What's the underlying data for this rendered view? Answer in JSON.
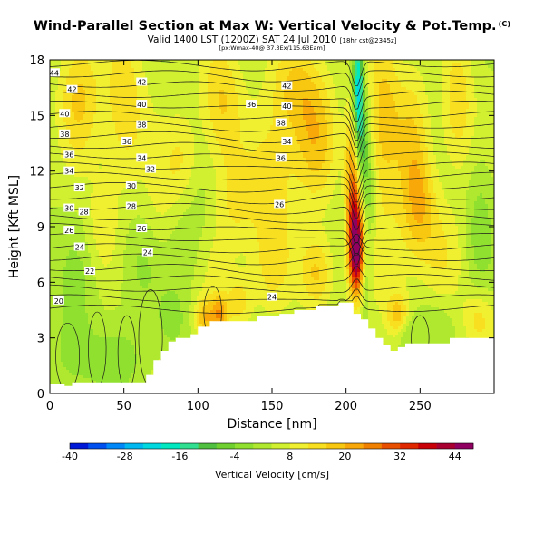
{
  "chart_data": {
    "type": "heatmap",
    "title": "Wind-Parallel Section at Max W: Vertical Velocity & Pot.Temp.",
    "title_mark": "(C)",
    "subtitle_main": "Valid 1400 LST (1200Z) SAT 24 Jul 2010",
    "subtitle_small": "[18hr cst@2345z]",
    "subtitle_line2": "[px:Wmax-40@ 37.3Ex/115.63Eam]",
    "xlabel": "Distance [nm]",
    "ylabel": "Height [Kft MSL]",
    "xlim": [
      0,
      300
    ],
    "ylim": [
      0,
      18
    ],
    "x_ticks": [
      0,
      50,
      100,
      150,
      200,
      250
    ],
    "y_ticks": [
      0,
      3,
      6,
      9,
      12,
      15,
      18
    ],
    "colorbar": {
      "title": "Vertical Velocity [cm/s]",
      "ticks": [
        -40,
        -28,
        -16,
        -4,
        8,
        20,
        32,
        44
      ],
      "range": [
        -40,
        48
      ],
      "step": 4,
      "colors": [
        "#0018d8",
        "#0050f0",
        "#0088f8",
        "#00b8f0",
        "#00d8e0",
        "#00e8c0",
        "#30e090",
        "#50c040",
        "#70d030",
        "#90e030",
        "#b0e830",
        "#d0f030",
        "#f0f030",
        "#f8e020",
        "#f8c810",
        "#f8a808",
        "#f08000",
        "#e85000",
        "#e02800",
        "#c80008",
        "#a80030",
        "#900060"
      ]
    },
    "terrain": [
      [
        0,
        0.5
      ],
      [
        10,
        0.5
      ],
      [
        10,
        0.4
      ],
      [
        15,
        0.4
      ],
      [
        15,
        0.6
      ],
      [
        25,
        0.6
      ],
      [
        30,
        0.6
      ],
      [
        50,
        0.6
      ],
      [
        60,
        0.6
      ],
      [
        65,
        0.6
      ],
      [
        65,
        1.0
      ],
      [
        70,
        1.0
      ],
      [
        70,
        1.8
      ],
      [
        75,
        1.8
      ],
      [
        75,
        2.3
      ],
      [
        80,
        2.3
      ],
      [
        80,
        2.8
      ],
      [
        85,
        2.8
      ],
      [
        85,
        3.0
      ],
      [
        95,
        3.0
      ],
      [
        95,
        3.2
      ],
      [
        100,
        3.2
      ],
      [
        100,
        3.6
      ],
      [
        108,
        3.6
      ],
      [
        108,
        3.9
      ],
      [
        140,
        3.9
      ],
      [
        140,
        4.2
      ],
      [
        155,
        4.2
      ],
      [
        155,
        4.3
      ],
      [
        165,
        4.3
      ],
      [
        165,
        4.5
      ],
      [
        180,
        4.5
      ],
      [
        180,
        4.7
      ],
      [
        195,
        4.7
      ],
      [
        195,
        4.9
      ],
      [
        205,
        4.9
      ],
      [
        205,
        4.3
      ],
      [
        210,
        4.3
      ],
      [
        210,
        4.0
      ],
      [
        215,
        4.0
      ],
      [
        215,
        3.5
      ],
      [
        220,
        3.5
      ],
      [
        220,
        3.0
      ],
      [
        225,
        3.0
      ],
      [
        225,
        2.6
      ],
      [
        230,
        2.6
      ],
      [
        230,
        2.3
      ],
      [
        235,
        2.3
      ],
      [
        235,
        2.5
      ],
      [
        240,
        2.5
      ],
      [
        240,
        2.7
      ],
      [
        250,
        2.7
      ],
      [
        260,
        2.7
      ],
      [
        270,
        2.7
      ],
      [
        270,
        3.0
      ],
      [
        285,
        3.0
      ],
      [
        300,
        3.0
      ]
    ],
    "field_features": [
      {
        "x": 207,
        "y": 7.5,
        "sx": 3.5,
        "sy": 1.6,
        "w": 34
      },
      {
        "x": 206,
        "y": 9.5,
        "sx": 3.0,
        "sy": 2.0,
        "w": 20
      },
      {
        "x": 203,
        "y": 12.2,
        "sx": 3.0,
        "sy": 2.5,
        "w": 14
      },
      {
        "x": 208,
        "y": 16.5,
        "sx": 2.5,
        "sy": 2.2,
        "w": -26
      },
      {
        "x": 212,
        "y": 13.5,
        "sx": 2.5,
        "sy": 2.0,
        "w": -12
      },
      {
        "x": 216,
        "y": 10.5,
        "sx": 3.0,
        "sy": 2.0,
        "w": -8
      },
      {
        "x": 213,
        "y": 6.0,
        "sx": 2.5,
        "sy": 1.5,
        "w": -8
      },
      {
        "x": 20,
        "y": 16.0,
        "sx": 10,
        "sy": 2.5,
        "w": 12
      },
      {
        "x": 50,
        "y": 15.5,
        "sx": 10,
        "sy": 3.0,
        "w": 12
      },
      {
        "x": 115,
        "y": 16.0,
        "sx": 10,
        "sy": 2.5,
        "w": 12
      },
      {
        "x": 165,
        "y": 16.5,
        "sx": 12,
        "sy": 2.0,
        "w": 12
      },
      {
        "x": 225,
        "y": 15.0,
        "sx": 8,
        "sy": 3.5,
        "w": 14
      },
      {
        "x": 245,
        "y": 13.5,
        "sx": 8,
        "sy": 3.0,
        "w": 10
      },
      {
        "x": 275,
        "y": 15.5,
        "sx": 8,
        "sy": 2.5,
        "w": 12
      },
      {
        "x": 150,
        "y": 12.0,
        "sx": 12,
        "sy": 2.5,
        "w": 10
      },
      {
        "x": 180,
        "y": 13.5,
        "sx": 10,
        "sy": 2.5,
        "w": 12
      },
      {
        "x": 125,
        "y": 10.0,
        "sx": 10,
        "sy": 2.0,
        "w": 8
      },
      {
        "x": 75,
        "y": 10.5,
        "sx": 8,
        "sy": 2.5,
        "w": 6
      },
      {
        "x": 35,
        "y": 9.0,
        "sx": 8,
        "sy": 2.0,
        "w": 6
      },
      {
        "x": 110,
        "y": 6.5,
        "sx": 10,
        "sy": 2.0,
        "w": 6
      },
      {
        "x": 150,
        "y": 7.0,
        "sx": 10,
        "sy": 2.0,
        "w": 8
      },
      {
        "x": 180,
        "y": 6.5,
        "sx": 8,
        "sy": 1.5,
        "w": 14
      },
      {
        "x": 128,
        "y": 5.0,
        "sx": 6,
        "sy": 1.0,
        "w": 10
      },
      {
        "x": 230,
        "y": 7.0,
        "sx": 12,
        "sy": 2.5,
        "w": 6
      },
      {
        "x": 265,
        "y": 7.5,
        "sx": 10,
        "sy": 2.0,
        "w": 6
      },
      {
        "x": 95,
        "y": 8.5,
        "sx": 12,
        "sy": 3.0,
        "w": -6
      },
      {
        "x": 60,
        "y": 7.0,
        "sx": 10,
        "sy": 2.0,
        "w": -4
      },
      {
        "x": 20,
        "y": 6.0,
        "sx": 10,
        "sy": 2.0,
        "w": -4
      },
      {
        "x": 15,
        "y": 2.0,
        "sx": 10,
        "sy": 1.5,
        "w": -6
      },
      {
        "x": 45,
        "y": 1.8,
        "sx": 15,
        "sy": 1.2,
        "w": -6
      },
      {
        "x": 82,
        "y": 4.0,
        "sx": 6,
        "sy": 1.0,
        "w": -6
      },
      {
        "x": 105,
        "y": 4.0,
        "sx": 5,
        "sy": 0.8,
        "w": 14
      },
      {
        "x": 115,
        "y": 4.3,
        "sx": 4,
        "sy": 0.7,
        "w": 16
      },
      {
        "x": 235,
        "y": 4.2,
        "sx": 5,
        "sy": 0.8,
        "w": 14
      },
      {
        "x": 240,
        "y": 3.2,
        "sx": 6,
        "sy": 0.8,
        "w": -6
      },
      {
        "x": 290,
        "y": 4.0,
        "sx": 8,
        "sy": 1.2,
        "w": 10
      },
      {
        "x": 260,
        "y": 3.8,
        "sx": 10,
        "sy": 1.0,
        "w": -4
      },
      {
        "x": 90,
        "y": 12.5,
        "sx": 8,
        "sy": 2.0,
        "w": 10
      },
      {
        "x": 250,
        "y": 10.0,
        "sx": 8,
        "sy": 2.0,
        "w": 12
      },
      {
        "x": 290,
        "y": 9.0,
        "sx": 6,
        "sy": 2.5,
        "w": -6
      }
    ],
    "theta_contours": {
      "levels": [
        20,
        21,
        22,
        23,
        24,
        25,
        26,
        27,
        28,
        29,
        30,
        31,
        32,
        33,
        34,
        35,
        36,
        37,
        38,
        39,
        40,
        41,
        42,
        43,
        44
      ],
      "labels": [
        {
          "text": "44",
          "x": 3,
          "y": 17.3
        },
        {
          "text": "42",
          "x": 15,
          "y": 16.4
        },
        {
          "text": "40",
          "x": 10,
          "y": 15.1
        },
        {
          "text": "38",
          "x": 10,
          "y": 14.0
        },
        {
          "text": "36",
          "x": 13,
          "y": 12.9
        },
        {
          "text": "34",
          "x": 13,
          "y": 12.0
        },
        {
          "text": "32",
          "x": 20,
          "y": 11.1
        },
        {
          "text": "30",
          "x": 13,
          "y": 10.0
        },
        {
          "text": "28",
          "x": 23,
          "y": 9.8
        },
        {
          "text": "26",
          "x": 13,
          "y": 8.8
        },
        {
          "text": "24",
          "x": 20,
          "y": 7.9
        },
        {
          "text": "22",
          "x": 27,
          "y": 6.6
        },
        {
          "text": "20",
          "x": 6,
          "y": 5.0
        },
        {
          "text": "42",
          "x": 62,
          "y": 16.8
        },
        {
          "text": "40",
          "x": 62,
          "y": 15.6
        },
        {
          "text": "38",
          "x": 62,
          "y": 14.5
        },
        {
          "text": "36",
          "x": 52,
          "y": 13.6
        },
        {
          "text": "34",
          "x": 62,
          "y": 12.7
        },
        {
          "text": "32",
          "x": 68,
          "y": 12.1
        },
        {
          "text": "30",
          "x": 55,
          "y": 11.2
        },
        {
          "text": "28",
          "x": 55,
          "y": 10.1
        },
        {
          "text": "26",
          "x": 62,
          "y": 8.9
        },
        {
          "text": "24",
          "x": 66,
          "y": 7.6
        },
        {
          "text": "36",
          "x": 136,
          "y": 15.6
        },
        {
          "text": "42",
          "x": 160,
          "y": 16.6
        },
        {
          "text": "40",
          "x": 160,
          "y": 15.5
        },
        {
          "text": "38",
          "x": 156,
          "y": 14.6
        },
        {
          "text": "34",
          "x": 160,
          "y": 13.6
        },
        {
          "text": "36",
          "x": 156,
          "y": 12.7
        },
        {
          "text": "26",
          "x": 155,
          "y": 10.2
        },
        {
          "text": "24",
          "x": 150,
          "y": 5.2
        }
      ]
    }
  }
}
